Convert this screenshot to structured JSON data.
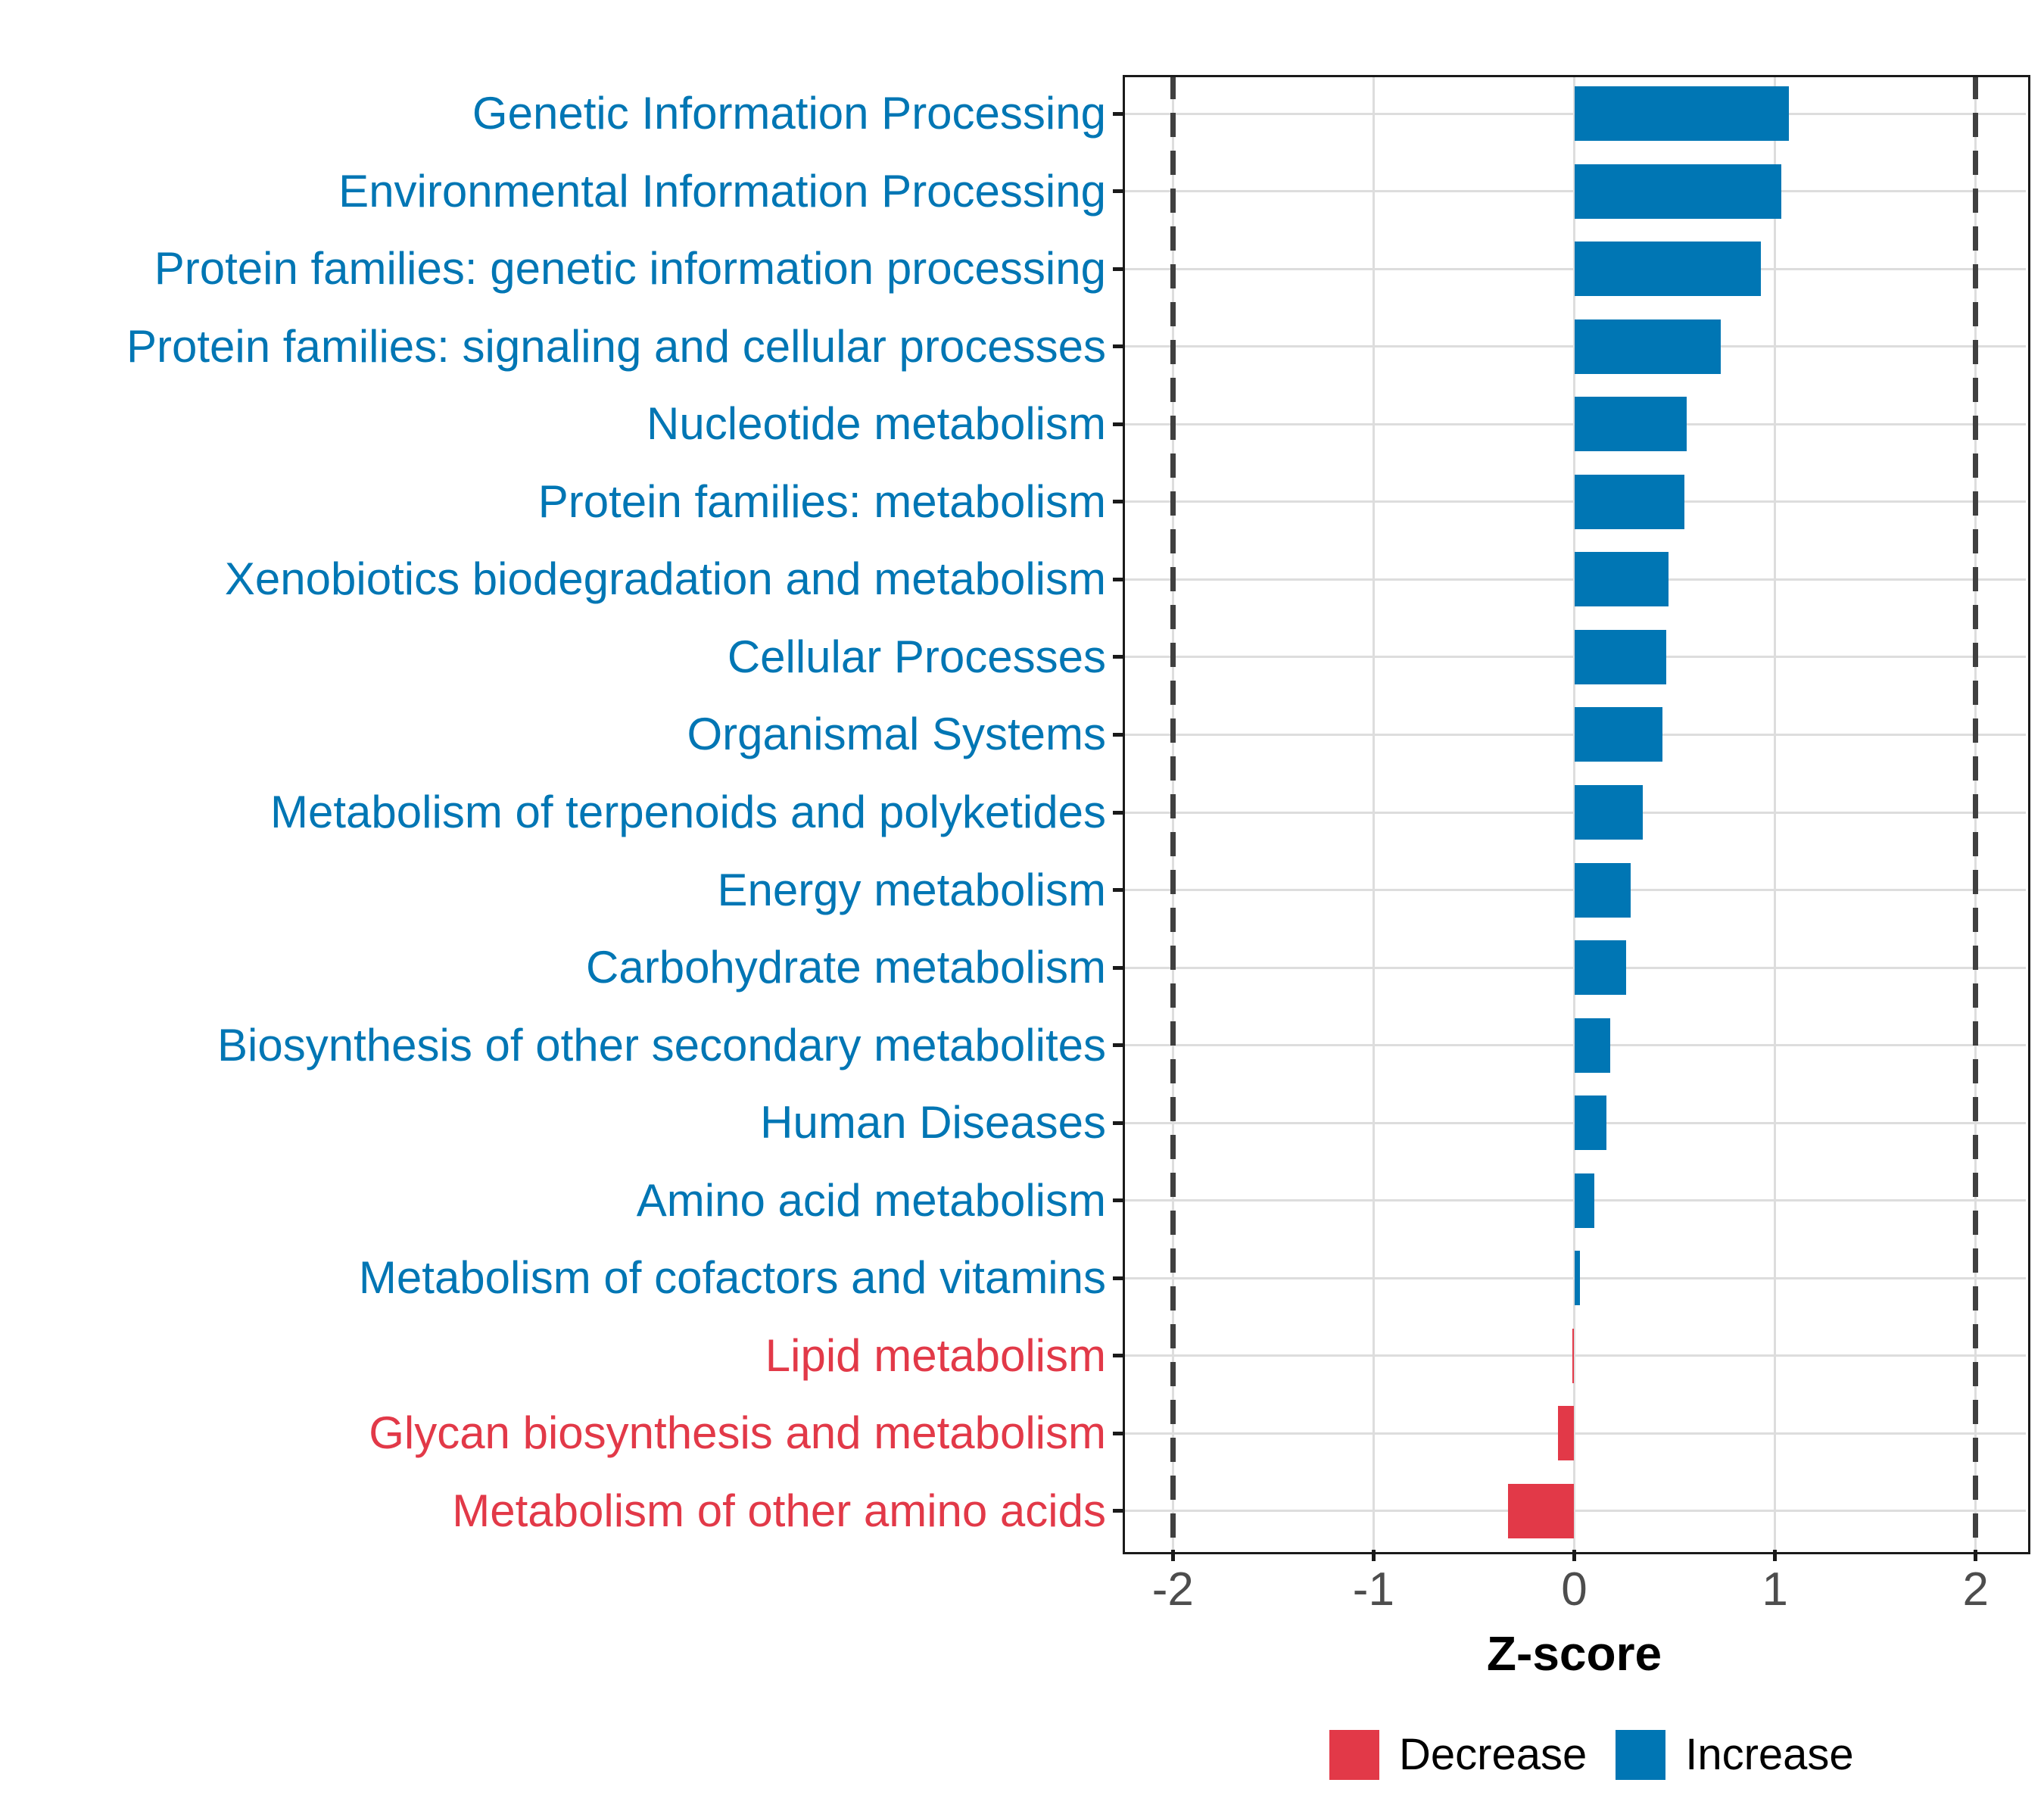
{
  "chart_data": {
    "type": "bar",
    "orientation": "horizontal",
    "title": "",
    "xlabel": "Z-score",
    "ylabel": "",
    "xlim": [
      -2.25,
      2.25
    ],
    "x_ticks": [
      -2,
      -1,
      0,
      1,
      2
    ],
    "reference_lines_dashed": [
      -2,
      2
    ],
    "grid": true,
    "legend_position": "bottom",
    "categories": [
      {
        "label": "Genetic Information Processing",
        "value": 1.07,
        "group": "Increase"
      },
      {
        "label": "Environmental Information Processing",
        "value": 1.03,
        "group": "Increase"
      },
      {
        "label": "Protein families: genetic information processing",
        "value": 0.93,
        "group": "Increase"
      },
      {
        "label": "Protein families: signaling and cellular processes",
        "value": 0.73,
        "group": "Increase"
      },
      {
        "label": "Nucleotide metabolism",
        "value": 0.56,
        "group": "Increase"
      },
      {
        "label": "Protein families: metabolism",
        "value": 0.55,
        "group": "Increase"
      },
      {
        "label": "Xenobiotics biodegradation and metabolism",
        "value": 0.47,
        "group": "Increase"
      },
      {
        "label": "Cellular Processes",
        "value": 0.46,
        "group": "Increase"
      },
      {
        "label": "Organismal Systems",
        "value": 0.44,
        "group": "Increase"
      },
      {
        "label": "Metabolism of terpenoids and polyketides",
        "value": 0.34,
        "group": "Increase"
      },
      {
        "label": "Energy metabolism",
        "value": 0.28,
        "group": "Increase"
      },
      {
        "label": "Carbohydrate metabolism",
        "value": 0.26,
        "group": "Increase"
      },
      {
        "label": "Biosynthesis of other secondary metabolites",
        "value": 0.18,
        "group": "Increase"
      },
      {
        "label": "Human Diseases",
        "value": 0.16,
        "group": "Increase"
      },
      {
        "label": "Amino acid metabolism",
        "value": 0.1,
        "group": "Increase"
      },
      {
        "label": "Metabolism of cofactors and vitamins",
        "value": 0.03,
        "group": "Increase"
      },
      {
        "label": "Lipid metabolism",
        "value": -0.01,
        "group": "Decrease"
      },
      {
        "label": "Glycan biosynthesis and metabolism",
        "value": -0.08,
        "group": "Decrease"
      },
      {
        "label": "Metabolism of other amino acids",
        "value": -0.33,
        "group": "Decrease"
      }
    ],
    "legend": [
      {
        "label": "Decrease",
        "color": "#E23948"
      },
      {
        "label": "Increase",
        "color": "#0076B4"
      }
    ]
  },
  "colors": {
    "increase": "#0076B4",
    "decrease": "#E23948",
    "gridline": "#dddddd",
    "reference_line": "#404040",
    "axis": "#1a1a1a",
    "tick_label": "#4d4d4d",
    "background": "#ffffff"
  }
}
